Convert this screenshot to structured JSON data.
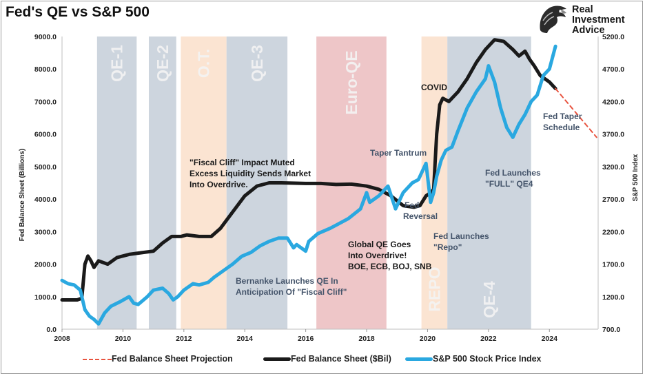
{
  "chart_data": {
    "type": "line",
    "title": "Fed's QE vs S&P 500",
    "y_left_label": "Fed Balance Sheet (Billions)",
    "y_right_label": "S&P 500 Index",
    "x_range": [
      2008,
      2025.6
    ],
    "y_left_range": [
      0,
      9000
    ],
    "y_right_range": [
      700,
      5200
    ],
    "x_ticks": [
      "2008",
      "2010",
      "2012",
      "2014",
      "2016",
      "2018",
      "2020",
      "2022",
      "2024"
    ],
    "y_left_ticks": [
      "0.0",
      "1000.0",
      "2000.0",
      "3000.0",
      "4000.0",
      "5000.0",
      "6000.0",
      "7000.0",
      "8000.0",
      "9000.0"
    ],
    "y_right_ticks": [
      "700.0",
      "1200.0",
      "1700.0",
      "2200.0",
      "2700.0",
      "3200.0",
      "3700.0",
      "4200.0",
      "4700.0",
      "5200.0"
    ],
    "bands": [
      {
        "label": "QE-1",
        "start": 2009.15,
        "end": 2010.45,
        "color": "#cdd5de"
      },
      {
        "label": "QE-2",
        "start": 2010.85,
        "end": 2011.75,
        "color": "#cdd5de"
      },
      {
        "label": "O.T.",
        "start": 2011.9,
        "end": 2013.4,
        "color": "#fbe4d2"
      },
      {
        "label": "QE-3",
        "start": 2013.4,
        "end": 2015.4,
        "color": "#cdd5de"
      },
      {
        "label": "Euro-QE",
        "start": 2016.35,
        "end": 2018.65,
        "color": "#eec6c8"
      },
      {
        "label": "REPO",
        "start": 2019.8,
        "end": 2020.65,
        "color": "#fbe4d2"
      },
      {
        "label": "QE-4",
        "start": 2020.65,
        "end": 2023.4,
        "color": "#cdd5de"
      }
    ],
    "series": [
      {
        "name": "Fed Balance Sheet ($Bil)",
        "axis": "left",
        "color": "#1a1a1a",
        "x": [
          2008.0,
          2008.5,
          2008.65,
          2008.75,
          2008.85,
          2008.95,
          2009.05,
          2009.2,
          2009.5,
          2009.8,
          2010.2,
          2010.6,
          2011.0,
          2011.3,
          2011.6,
          2011.9,
          2012.1,
          2012.5,
          2012.9,
          2013.2,
          2013.6,
          2014.0,
          2014.4,
          2014.8,
          2015.2,
          2016.0,
          2016.5,
          2017.0,
          2017.5,
          2018.0,
          2018.4,
          2018.8,
          2019.2,
          2019.55,
          2019.75,
          2019.95,
          2020.1,
          2020.2,
          2020.3,
          2020.4,
          2020.5,
          2020.7,
          2021.0,
          2021.3,
          2021.6,
          2021.9,
          2022.2,
          2022.5,
          2022.8,
          2023.0,
          2023.2,
          2023.35,
          2023.5,
          2023.7,
          2024.0,
          2024.2
        ],
        "y": [
          900,
          900,
          950,
          2000,
          2250,
          2100,
          1900,
          2100,
          2000,
          2200,
          2300,
          2350,
          2400,
          2650,
          2850,
          2850,
          2900,
          2850,
          2850,
          3100,
          3600,
          4100,
          4400,
          4500,
          4500,
          4480,
          4480,
          4450,
          4460,
          4400,
          4300,
          4100,
          3800,
          3750,
          3800,
          4100,
          4200,
          4300,
          6000,
          6900,
          7100,
          7000,
          7300,
          7700,
          8200,
          8600,
          8900,
          8850,
          8600,
          8400,
          8550,
          8300,
          8100,
          7800,
          7600,
          7400
        ]
      },
      {
        "name": "S&P 500 Stock Price Index",
        "axis": "right",
        "color": "#2aa8e0",
        "x": [
          2008.0,
          2008.2,
          2008.4,
          2008.6,
          2008.75,
          2008.9,
          2009.05,
          2009.2,
          2009.4,
          2009.6,
          2009.9,
          2010.2,
          2010.35,
          2010.5,
          2010.8,
          2011.0,
          2011.3,
          2011.5,
          2011.65,
          2011.8,
          2012.0,
          2012.3,
          2012.5,
          2012.8,
          2013.0,
          2013.3,
          2013.6,
          2013.9,
          2014.2,
          2014.5,
          2014.8,
          2015.1,
          2015.4,
          2015.6,
          2015.7,
          2016.0,
          2016.1,
          2016.4,
          2016.8,
          2017.0,
          2017.4,
          2017.8,
          2018.0,
          2018.1,
          2018.4,
          2018.7,
          2018.95,
          2019.2,
          2019.5,
          2019.7,
          2019.95,
          2020.1,
          2020.2,
          2020.3,
          2020.45,
          2020.6,
          2020.8,
          2021.0,
          2021.3,
          2021.6,
          2021.9,
          2022.0,
          2022.2,
          2022.4,
          2022.6,
          2022.8,
          2023.0,
          2023.2,
          2023.4,
          2023.6,
          2023.8,
          2024.0,
          2024.2
        ],
        "y": [
          1450,
          1400,
          1380,
          1300,
          1000,
          900,
          850,
          780,
          950,
          1050,
          1120,
          1200,
          1100,
          1080,
          1200,
          1300,
          1330,
          1250,
          1150,
          1200,
          1300,
          1400,
          1380,
          1420,
          1500,
          1600,
          1700,
          1820,
          1880,
          1980,
          2050,
          2100,
          2100,
          1950,
          2000,
          1900,
          2050,
          2170,
          2250,
          2300,
          2400,
          2550,
          2800,
          2650,
          2750,
          2900,
          2550,
          2800,
          2950,
          3000,
          3250,
          2650,
          2800,
          3050,
          3300,
          3450,
          3500,
          3750,
          4100,
          4350,
          4550,
          4750,
          4500,
          4100,
          3800,
          3650,
          3850,
          4000,
          4200,
          4300,
          4600,
          4700,
          5050
        ]
      },
      {
        "name": "Fed Balance Sheet Projection",
        "axis": "left",
        "color": "#e8533f",
        "dashed": true,
        "x": [
          2024.2,
          2025.55
        ],
        "y": [
          7400,
          5900
        ]
      }
    ],
    "annotations": [
      {
        "lines": [
          "\"Fiscal Cliff\" Impact Muted",
          "Excess Liquidity Sends Market",
          "Into Overdrive."
        ],
        "color": "#1a1a1a"
      },
      {
        "lines": [
          "Bernanke Launches QE In",
          "Anticipation Of \"Fiscal Cliff\""
        ],
        "color": "#44546a"
      },
      {
        "lines": [
          "Global QE Goes",
          "Into Overdrive!",
          "BOE, ECB, BOJ, SNB"
        ],
        "color": "#1a1a1a"
      },
      {
        "lines": [
          "Taper Tantrum"
        ],
        "color": "#44546a"
      },
      {
        "lines": [
          "Fed",
          "Reversal"
        ],
        "color": "#44546a"
      },
      {
        "lines": [
          "COVID"
        ],
        "color": "#1a1a1a"
      },
      {
        "lines": [
          "Fed Launches",
          "\"Repo\""
        ],
        "color": "#44546a"
      },
      {
        "lines": [
          "Fed Launches",
          "\"FULL\" QE4"
        ],
        "color": "#44546a"
      },
      {
        "lines": [
          "Fed Taper",
          "Schedule"
        ],
        "color": "#44546a"
      }
    ]
  },
  "logo": {
    "line1": "Real",
    "line2": "Investment",
    "line3": "Advice",
    "icon": "eagle-head-icon"
  },
  "legend": [
    {
      "label": "Fed Balance Sheet Projection",
      "color": "#e8533f",
      "style": "dashed"
    },
    {
      "label": "Fed Balance Sheet ($Bil)",
      "color": "#1a1a1a",
      "style": "solid"
    },
    {
      "label": "S&P 500 Stock Price Index",
      "color": "#2aa8e0",
      "style": "solid"
    }
  ]
}
